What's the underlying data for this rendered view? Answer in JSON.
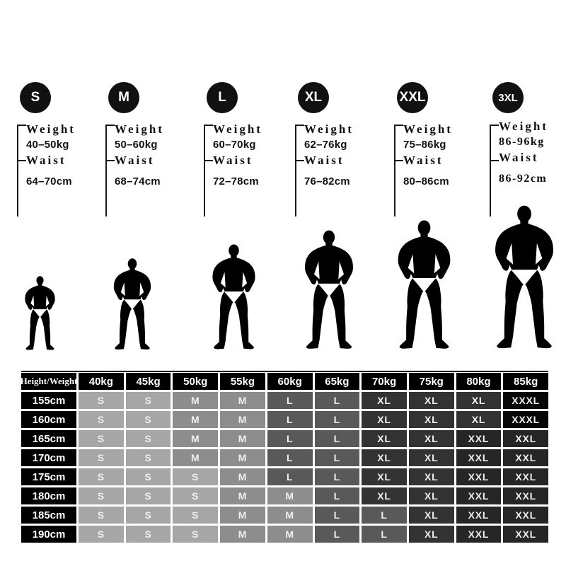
{
  "size_guide": {
    "weight_label": "Weight",
    "waist_label": "Waist",
    "badge_bg": "#111111",
    "sizes": [
      {
        "label": "S",
        "weight_range": "40–50kg",
        "waist_range": "64–70cm"
      },
      {
        "label": "M",
        "weight_range": "50–60kg",
        "waist_range": "68–74cm"
      },
      {
        "label": "L",
        "weight_range": "60–70kg",
        "waist_range": "72–78cm"
      },
      {
        "label": "XL",
        "weight_range": "62–76kg",
        "waist_range": "76–82cm"
      },
      {
        "label": "XXL",
        "weight_range": "75–86kg",
        "waist_range": "80–86cm"
      },
      {
        "label": "3XL",
        "weight_range": "86-96kg",
        "waist_range": "86-92cm"
      }
    ]
  },
  "figures": {
    "icon": "male-bodybuilder-silhouette",
    "labels": [
      "S",
      "M",
      "L",
      "XL",
      "XXL",
      "3XL"
    ],
    "silhouette_color": "#000000",
    "briefs_color": "#ffffff"
  },
  "size_table": {
    "corner_header": "Height/Weight",
    "weight_headers": [
      "40kg",
      "45kg",
      "50kg",
      "55kg",
      "60kg",
      "65kg",
      "70kg",
      "75kg",
      "80kg",
      "85kg"
    ],
    "rows": [
      {
        "height": "155cm",
        "sizes": [
          "S",
          "S",
          "M",
          "M",
          "L",
          "L",
          "XL",
          "XL",
          "XL",
          "XXXL"
        ]
      },
      {
        "height": "160cm",
        "sizes": [
          "S",
          "S",
          "M",
          "M",
          "L",
          "L",
          "XL",
          "XL",
          "XL",
          "XXXL"
        ]
      },
      {
        "height": "165cm",
        "sizes": [
          "S",
          "S",
          "M",
          "M",
          "L",
          "L",
          "XL",
          "XL",
          "XXL",
          "XXL"
        ]
      },
      {
        "height": "170cm",
        "sizes": [
          "S",
          "S",
          "M",
          "M",
          "L",
          "L",
          "XL",
          "XL",
          "XXL",
          "XXL"
        ]
      },
      {
        "height": "175cm",
        "sizes": [
          "S",
          "S",
          "S",
          "M",
          "L",
          "L",
          "XL",
          "XL",
          "XXL",
          "XXL"
        ]
      },
      {
        "height": "180cm",
        "sizes": [
          "S",
          "S",
          "S",
          "M",
          "M",
          "L",
          "XL",
          "XL",
          "XXL",
          "XXL"
        ]
      },
      {
        "height": "185cm",
        "sizes": [
          "S",
          "S",
          "S",
          "M",
          "M",
          "L",
          "L",
          "XL",
          "XXL",
          "XXL"
        ]
      },
      {
        "height": "190cm",
        "sizes": [
          "S",
          "S",
          "S",
          "M",
          "M",
          "L",
          "L",
          "XL",
          "XXL",
          "XXL"
        ]
      }
    ],
    "size_colors": {
      "S": "#a6a6a6",
      "M": "#8d8d8d",
      "L": "#595959",
      "XL": "#333333",
      "XXL": "#262626",
      "XXXL": "#070707"
    },
    "header_bg": "#000000",
    "header_text_color": "#ffffff"
  }
}
